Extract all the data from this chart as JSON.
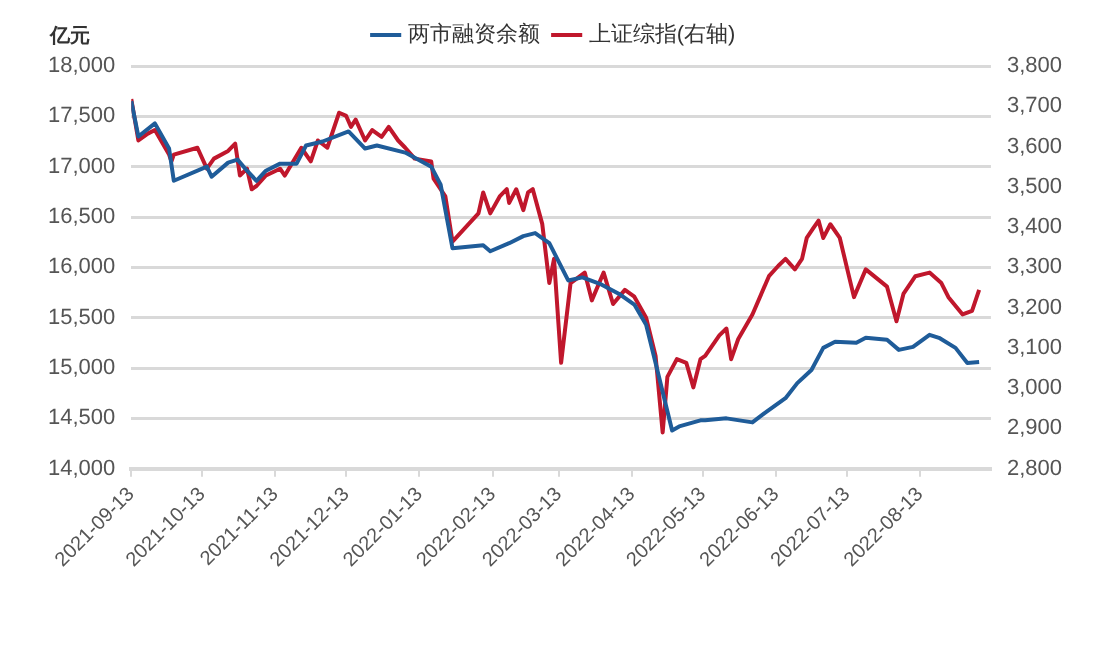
{
  "chart_data": {
    "type": "line",
    "ylabel": "亿元",
    "legend": "top",
    "grid": "y",
    "marker": "none",
    "line_style": "solid",
    "xlim": [
      "2021-09-13",
      "2022-09-12"
    ],
    "xticks": [
      "2021-09-13",
      "2021-10-13",
      "2021-11-13",
      "2021-12-13",
      "2022-01-13",
      "2022-02-13",
      "2022-03-13",
      "2022-04-13",
      "2022-05-13",
      "2022-06-13",
      "2022-07-13",
      "2022-08-13"
    ],
    "ylim": [
      14000,
      18000
    ],
    "yticks": [
      {
        "value": 14000,
        "label": "14,000"
      },
      {
        "value": 14500,
        "label": "14,500"
      },
      {
        "value": 15000,
        "label": "15,000"
      },
      {
        "value": 15500,
        "label": "15,500"
      },
      {
        "value": 16000,
        "label": "16,000"
      },
      {
        "value": 16500,
        "label": "16,500"
      },
      {
        "value": 17000,
        "label": "17,000"
      },
      {
        "value": 17500,
        "label": "17,500"
      },
      {
        "value": 18000,
        "label": "18,000"
      }
    ],
    "y2lim": [
      2800,
      3800
    ],
    "y2ticks": [
      {
        "value": 2800,
        "label": "2,800"
      },
      {
        "value": 2900,
        "label": "2,900"
      },
      {
        "value": 3000,
        "label": "3,000"
      },
      {
        "value": 3100,
        "label": "3,100"
      },
      {
        "value": 3200,
        "label": "3,200"
      },
      {
        "value": 3300,
        "label": "3,300"
      },
      {
        "value": 3400,
        "label": "3,400"
      },
      {
        "value": 3500,
        "label": "3,500"
      },
      {
        "value": 3600,
        "label": "3,600"
      },
      {
        "value": 3700,
        "label": "3,700"
      },
      {
        "value": 3800,
        "label": "3,800"
      }
    ],
    "series": [
      {
        "name": "两市融资余额",
        "color": "#1f5c99",
        "x": [
          "2021-09-13",
          "2021-09-16",
          "2021-09-23",
          "2021-09-29",
          "2021-10-01",
          "2021-10-15",
          "2021-10-17",
          "2021-10-24",
          "2021-10-28",
          "2021-11-01",
          "2021-11-05",
          "2021-11-09",
          "2021-11-15",
          "2021-11-22",
          "2021-11-26",
          "2021-12-03",
          "2021-12-14",
          "2021-12-21",
          "2021-12-26",
          "2022-01-07",
          "2022-01-18",
          "2022-01-22",
          "2022-01-27",
          "2022-02-09",
          "2022-02-12",
          "2022-02-20",
          "2022-02-26",
          "2022-03-03",
          "2022-03-09",
          "2022-03-17",
          "2022-03-23",
          "2022-03-31",
          "2022-04-08",
          "2022-04-14",
          "2022-04-19",
          "2022-04-23",
          "2022-04-28",
          "2022-04-30",
          "2022-05-03",
          "2022-05-12",
          "2022-05-14",
          "2022-05-23",
          "2022-06-03",
          "2022-06-08",
          "2022-06-17",
          "2022-06-22",
          "2022-06-28",
          "2022-07-03",
          "2022-07-08",
          "2022-07-17",
          "2022-07-21",
          "2022-07-30",
          "2022-08-04",
          "2022-08-10",
          "2022-08-17",
          "2022-08-21",
          "2022-08-28",
          "2022-09-02",
          "2022-09-07"
        ],
        "values": [
          17650,
          17300,
          17430,
          17180,
          16860,
          17000,
          16900,
          17040,
          17070,
          16960,
          16860,
          16960,
          17030,
          17030,
          17210,
          17250,
          17350,
          17180,
          17210,
          17140,
          17000,
          16820,
          16190,
          16220,
          16160,
          16240,
          16310,
          16340,
          16240,
          15870,
          15900,
          15830,
          15730,
          15630,
          15430,
          15050,
          14570,
          14380,
          14420,
          14480,
          14480,
          14500,
          14460,
          14550,
          14700,
          14850,
          14980,
          15200,
          15260,
          15250,
          15300,
          15280,
          15180,
          15210,
          15330,
          15300,
          15200,
          15050,
          15060
        ]
      },
      {
        "name": "上证综指(右轴)",
        "color": "#c0172c",
        "axis": "y2",
        "x": [
          "2021-09-13",
          "2021-09-16",
          "2021-09-20",
          "2021-09-23",
          "2021-09-29",
          "2021-09-30",
          "2021-10-01",
          "2021-10-11",
          "2021-10-15",
          "2021-10-18",
          "2021-10-24",
          "2021-10-27",
          "2021-10-29",
          "2021-11-01",
          "2021-11-03",
          "2021-11-05",
          "2021-11-09",
          "2021-11-15",
          "2021-11-17",
          "2021-11-24",
          "2021-11-28",
          "2021-12-01",
          "2021-12-05",
          "2021-12-10",
          "2021-12-13",
          "2021-12-15",
          "2021-12-17",
          "2021-12-21",
          "2021-12-24",
          "2021-12-28",
          "2021-12-31",
          "2022-01-04",
          "2022-01-07",
          "2022-01-11",
          "2022-01-18",
          "2022-01-19",
          "2022-01-24",
          "2022-01-27",
          "2022-02-07",
          "2022-02-09",
          "2022-02-12",
          "2022-02-16",
          "2022-02-19",
          "2022-02-20",
          "2022-02-23",
          "2022-02-26",
          "2022-02-28",
          "2022-03-02",
          "2022-03-06",
          "2022-03-09",
          "2022-03-11",
          "2022-03-14",
          "2022-03-18",
          "2022-03-24",
          "2022-03-27",
          "2022-04-01",
          "2022-04-05",
          "2022-04-10",
          "2022-04-14",
          "2022-04-19",
          "2022-04-23",
          "2022-04-26",
          "2022-04-28",
          "2022-05-02",
          "2022-05-06",
          "2022-05-09",
          "2022-05-12",
          "2022-05-14",
          "2022-05-20",
          "2022-05-23",
          "2022-05-25",
          "2022-05-28",
          "2022-06-03",
          "2022-06-10",
          "2022-06-14",
          "2022-06-17",
          "2022-06-21",
          "2022-06-24",
          "2022-06-26",
          "2022-06-29",
          "2022-07-01",
          "2022-07-03",
          "2022-07-06",
          "2022-07-10",
          "2022-07-16",
          "2022-07-21",
          "2022-07-30",
          "2022-08-03",
          "2022-08-06",
          "2022-08-11",
          "2022-08-17",
          "2022-08-22",
          "2022-08-25",
          "2022-08-31",
          "2022-09-04",
          "2022-09-07"
        ],
        "values": [
          3718,
          3615,
          3632,
          3641,
          3580,
          3563,
          3580,
          3597,
          3545,
          3570,
          3589,
          3607,
          3528,
          3545,
          3494,
          3502,
          3528,
          3545,
          3528,
          3597,
          3563,
          3615,
          3597,
          3684,
          3676,
          3649,
          3667,
          3615,
          3641,
          3624,
          3649,
          3615,
          3597,
          3570,
          3563,
          3520,
          3476,
          3364,
          3434,
          3486,
          3434,
          3476,
          3494,
          3460,
          3494,
          3442,
          3486,
          3494,
          3408,
          3261,
          3321,
          3063,
          3261,
          3287,
          3218,
          3287,
          3209,
          3244,
          3227,
          3175,
          3080,
          2890,
          3028,
          3072,
          3063,
          3002,
          3072,
          3080,
          3131,
          3148,
          3072,
          3122,
          3183,
          3278,
          3304,
          3321,
          3295,
          3321,
          3373,
          3399,
          3416,
          3373,
          3407,
          3373,
          3226,
          3295,
          3252,
          3166,
          3235,
          3278,
          3287,
          3261,
          3226,
          3183,
          3192,
          3244
        ]
      }
    ]
  }
}
